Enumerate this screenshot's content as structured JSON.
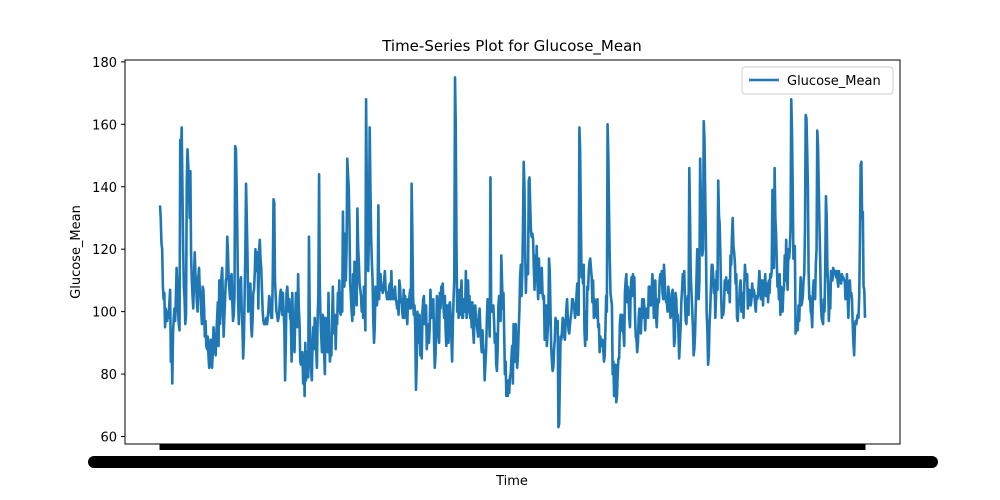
{
  "chart_data": {
    "type": "line",
    "title": "Time-Series Plot for Glucose_Mean",
    "xlabel": "Time",
    "ylabel": "Glucose_Mean",
    "ylim": [
      57.6,
      180.6
    ],
    "yticks": [
      60,
      80,
      100,
      120,
      140,
      160,
      180
    ],
    "grid": false,
    "legend_position": "top-right",
    "series": [
      {
        "name": "Glucose_Mean",
        "color": "#1f77b4",
        "values": [
          134,
          130,
          122,
          120,
          108,
          104,
          106,
          95,
          101,
          99,
          97,
          100,
          98,
          103,
          107,
          84,
          91,
          77,
          93,
          98,
          101,
          97,
          105,
          114,
          108,
          100,
          96,
          94,
          155,
          151,
          159,
          140,
          120,
          108,
          104,
          96,
          99,
          141,
          152,
          147,
          140,
          130,
          145,
          118,
          110,
          105,
          101,
          110,
          119,
          112,
          108,
          103,
          100,
          111,
          114,
          107,
          105,
          100,
          96,
          108,
          107,
          101,
          92,
          97,
          89,
          88,
          92,
          86,
          82,
          84,
          91,
          85,
          82,
          87,
          95,
          90,
          88,
          86,
          93,
          98,
          103,
          89,
          110,
          96,
          100,
          111,
          114,
          104,
          92,
          98,
          104,
          110,
          111,
          124,
          119,
          110,
          107,
          104,
          111,
          112,
          103,
          97,
          99,
          105,
          153,
          152,
          140,
          124,
          104,
          96,
          110,
          109,
          111,
          100,
          95,
          85,
          91,
          104,
          118,
          141,
          130,
          118,
          100,
          104,
          103,
          109,
          96,
          92,
          97,
          106,
          107,
          112,
          120,
          114,
          113,
          119,
          101,
          119,
          123,
          117,
          114,
          107,
          100,
          97,
          96,
          97,
          96,
          98,
          96,
          98,
          101,
          105,
          104,
          100,
          98,
          98,
          112,
          136,
          135,
          110,
          105,
          100,
          99,
          97,
          98,
          100,
          105,
          107,
          106,
          99,
          106,
          100,
          95,
          78,
          90,
          106,
          108,
          104,
          100,
          104,
          98,
          97,
          84,
          106,
          95,
          90,
          87,
          98,
          106,
          100,
          95,
          112,
          101,
          96,
          84,
          83,
          84,
          87,
          77,
          86,
          73,
          90,
          78,
          87,
          84,
          79,
          124,
          100,
          85,
          81,
          78,
          90,
          95,
          88,
          98,
          93,
          88,
          82,
          98,
          105,
          144,
          108,
          98,
          92,
          87,
          99,
          98,
          87,
          80,
          98,
          95,
          89,
          87,
          106,
          91,
          84,
          87,
          86,
          97,
          108,
          96,
          93,
          99,
          88,
          98,
          96,
          106,
          102,
          110,
          100,
          99,
          106,
          100,
          132,
          113,
          108,
          125,
          110,
          120,
          149,
          144,
          140,
          128,
          109,
          105,
          100,
          97,
          112,
          99,
          116,
          109,
          105,
          102,
          133,
          121,
          116,
          109,
          107,
          105,
          100,
          104,
          98,
          108,
          104,
          94,
          168,
          140,
          119,
          113,
          126,
          159,
          140,
          124,
          116,
          110,
          97,
          90,
          95,
          108,
          104,
          102,
          105,
          134,
          104,
          111,
          112,
          107,
          108,
          106,
          108,
          110,
          113,
          107,
          106,
          104,
          106,
          104,
          108,
          109,
          104,
          113,
          104,
          107,
          106,
          104,
          108,
          104,
          103,
          101,
          102,
          99,
          110,
          108,
          103,
          104,
          100,
          98,
          107,
          98,
          105,
          102,
          99,
          96,
          104,
          101,
          105,
          107,
          101,
          141,
          125,
          105,
          99,
          102,
          95,
          75,
          83,
          100,
          90,
          96,
          99,
          86,
          90,
          85,
          100,
          104,
          105,
          96,
          98,
          102,
          88,
          96,
          92,
          90,
          95,
          107,
          100,
          98,
          102,
          104,
          91,
          82,
          86,
          94,
          105,
          100,
          93,
          90,
          106,
          101,
          108,
          107,
          109,
          102,
          98,
          105,
          94,
          89,
          102,
          94,
          90,
          102,
          103,
          98,
          91,
          84,
          96,
          104,
          110,
          175,
          160,
          122,
          100,
          104,
          98,
          107,
          99,
          104,
          110,
          98,
          98,
          104,
          101,
          100,
          113,
          98,
          100,
          110,
          100,
          105,
          98,
          103,
          95,
          103,
          94,
          90,
          100,
          102,
          98,
          96,
          94,
          92,
          99,
          101,
          95,
          90,
          87,
          94,
          88,
          87,
          78,
          83,
          88,
          97,
          104,
          99,
          98,
          92,
          143,
          100,
          101,
          100,
          102,
          97,
          90,
          93,
          83,
          81,
          88,
          102,
          105,
          105,
          97,
          118,
          110,
          101,
          106,
          93,
          80,
          84,
          73,
          76,
          73,
          78,
          74,
          79,
          80,
          85,
          89,
          77,
          96,
          91,
          84,
          96,
          86,
          82,
          86,
          94,
          100,
          111,
          115,
          105,
          112,
          127,
          148,
          140,
          120,
          106,
          115,
          114,
          112,
          142,
          143,
          134,
          126,
          124,
          125,
          123,
          114,
          107,
          118,
          110,
          121,
          109,
          104,
          117,
          109,
          106,
          113,
          114,
          106,
          104,
          105,
          91,
          100,
          102,
          89,
          93,
          97,
          117,
          113,
          101,
          89,
          84,
          81,
          82,
          88,
          91,
          98,
          97,
          95,
          97,
          63,
          64,
          78,
          92,
          91,
          94,
          98,
          97,
          92,
          91,
          96,
          101,
          104,
          98,
          94,
          93,
          96,
          98,
          100,
          104,
          104,
          102,
          101,
          98,
          101,
          105,
          109,
          99,
          99,
          159,
          152,
          130,
          111,
          113,
          109,
          115,
          94,
          89,
          100,
          91,
          108,
          107,
          113,
          116,
          117,
          114,
          111,
          103,
          110,
          98,
          104,
          101,
          100,
          98,
          104,
          95,
          96,
          87,
          92,
          90,
          89,
          91,
          88,
          84,
          86,
          94,
          105,
          100,
          160,
          150,
          132,
          117,
          106,
          104,
          102,
          80,
          84,
          73,
          75,
          83,
          71,
          73,
          80,
          85,
          85,
          96,
          99,
          94,
          99,
          94,
          93,
          89,
          106,
          110,
          112,
          103,
          108,
          105,
          98,
          95,
          107,
          111,
          105,
          112,
          110,
          111,
          98,
          92,
          91,
          87,
          90,
          98,
          101,
          94,
          93,
          99,
          104,
          98,
          104,
          101,
          94,
          100,
          101,
          100,
          98,
          108,
          108,
          102,
          102,
          107,
          112,
          107,
          98,
          107,
          110,
          99,
          95,
          101,
          104,
          103,
          110,
          112,
          109,
          113,
          106,
          104,
          115,
          110,
          105,
          103,
          103,
          100,
          108,
          105,
          102,
          98,
          99,
          106,
          107,
          99,
          89,
          91,
          106,
          104,
          97,
          99,
          93,
          85,
          90,
          95,
          103,
          107,
          112,
          107,
          113,
          104,
          97,
          96,
          103,
          105,
          99,
          146,
          130,
          112,
          106,
          101,
          95,
          86,
          88,
          93,
          102,
          111,
          120,
          107,
          104,
          110,
          149,
          136,
          125,
          118,
          120,
          161,
          155,
          138,
          122,
          100,
          94,
          83,
          86,
          96,
          101,
          108,
          115,
          115,
          112,
          106,
          110,
          98,
          105,
          113,
          107,
          142,
          131,
          128,
          118,
          106,
          98,
          100,
          99,
          102,
          110,
          107,
          111,
          107,
          108,
          106,
          110,
          103,
          118,
          115,
          124,
          130,
          121,
          119,
          116,
          109,
          112,
          98,
          97,
          102,
          103,
          108,
          110,
          100,
          103,
          106,
          98,
          108,
          115,
          111,
          110,
          112,
          101,
          103,
          107,
          105,
          102,
          104,
          109,
          105,
          107,
          106,
          102,
          100,
          105,
          104,
          105,
          109,
          113,
          107,
          104,
          110,
          108,
          102,
          110,
          107,
          112,
          105,
          108,
          109,
          103,
          110,
          106,
          112,
          111,
          113,
          139,
          130,
          114,
          146,
          130,
          125,
          116,
          108,
          110,
          104,
          112,
          99,
          108,
          106,
          100,
          106,
          108,
          118,
          110,
          123,
          112,
          107,
          120,
          117,
          120,
          126,
          168,
          158,
          140,
          117,
          118,
          121,
          93,
          96,
          98,
          94,
          102,
          97,
          104,
          111,
          102,
          103,
          105,
          110,
          112,
          126,
          163,
          162,
          152,
          140,
          113,
          104,
          105,
          100,
          99,
          95,
          106,
          110,
          109,
          104,
          115,
          120,
          158,
          153,
          140,
          128,
          117,
          103,
          98,
          97,
          96,
          104,
          100,
          114,
          137,
          130,
          114,
          109,
          97,
          103,
          101,
          113,
          112,
          110,
          114,
          113,
          112,
          113,
          111,
          113,
          110,
          108,
          113,
          110,
          110,
          109,
          112,
          111,
          111,
          110,
          110,
          104,
          106,
          112,
          105,
          98,
          106,
          110,
          105,
          106,
          104,
          96,
          90,
          86,
          95,
          97,
          96,
          98,
          99,
          98,
          105,
          123,
          147,
          148,
          130,
          132,
          108,
          107,
          98
        ]
      }
    ]
  }
}
